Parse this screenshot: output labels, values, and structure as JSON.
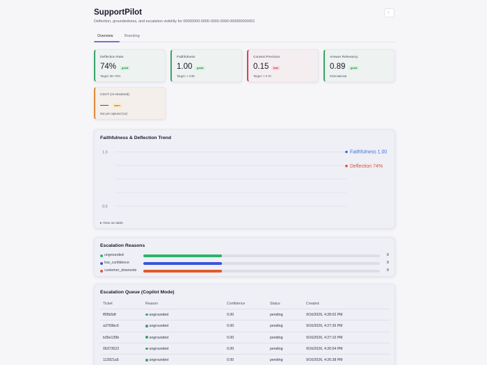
{
  "header": {
    "title": "SupportPilot",
    "subtitle": "Deflection, groundedness, and escalation visibility for 00000000-0000-0000-0000-000000000001",
    "theme_icon": "moon-icon"
  },
  "tabs": [
    {
      "label": "Overview",
      "active": true
    },
    {
      "label": "Branding",
      "active": false
    }
  ],
  "metrics": [
    {
      "label": "Deflection Rate",
      "value": "74%",
      "status": "good",
      "target": "Target: 50–70%"
    },
    {
      "label": "Faithfulness",
      "value": "1.00",
      "status": "good",
      "target": "Target: > 0.90"
    },
    {
      "label": "Context Precision",
      "value": "0.15",
      "status": "bad",
      "target": "Target: > 0.70"
    },
    {
      "label": "Answer Relevancy",
      "value": "0.89",
      "status": "good",
      "target": "Informational"
    },
    {
      "label": "CSAT (AI-resolved)",
      "value": "",
      "status": "warn",
      "target": "Not yet captured (v2)"
    }
  ],
  "trend": {
    "title": "Faithfulness & Deflection Trend",
    "toggle": "View as table",
    "chart_data": {
      "type": "line",
      "ylim": [
        0.0,
        1.0
      ],
      "yticks": [
        "1.0",
        "0.0"
      ],
      "series": [
        {
          "name": "Faithfulness",
          "label": "Faithfulness 1.00",
          "value": 1.0,
          "color": "#3a6fd8"
        },
        {
          "name": "Deflection",
          "label": "Deflection 74%",
          "value": 0.74,
          "color": "#dd4d3a"
        }
      ]
    }
  },
  "reasons": {
    "title": "Escalation Reasons",
    "max": 24,
    "items": [
      {
        "name": "ungrounded",
        "count": 8,
        "color": "#2fb36b"
      },
      {
        "name": "low_confidence",
        "count": 8,
        "color": "#3a55d8"
      },
      {
        "name": "customer_downvote",
        "count": 8,
        "color": "#e0592a"
      }
    ]
  },
  "queue": {
    "title": "Escalation Queue (Copilot Mode)",
    "columns": [
      "Ticket",
      "Reason",
      "Confidence",
      "Status",
      "Created"
    ],
    "rows": [
      {
        "ticket": "ff05b5df",
        "reason": "ungrounded",
        "confidence": "0.00",
        "status": "pending",
        "created": "9/16/2026, 4:28:02 PM"
      },
      {
        "ticket": "a3769bc6",
        "reason": "ungrounded",
        "confidence": "0.00",
        "status": "pending",
        "created": "9/16/2026, 4:27:26 PM"
      },
      {
        "ticket": "b36e139b",
        "reason": "ungrounded",
        "confidence": "0.00",
        "status": "pending",
        "created": "9/16/2026, 4:27:10 PM"
      },
      {
        "ticket": "06373522",
        "reason": "ungrounded",
        "confidence": "0.00",
        "status": "pending",
        "created": "9/16/2026, 4:26:54 PM"
      },
      {
        "ticket": "113921a5",
        "reason": "ungrounded",
        "confidence": "0.00",
        "status": "pending",
        "created": "9/16/2026, 4:26:38 PM"
      }
    ]
  }
}
